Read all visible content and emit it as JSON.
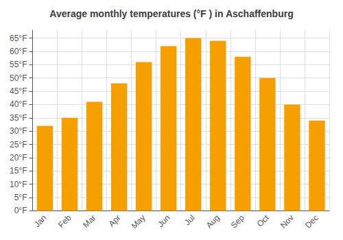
{
  "chart_data": {
    "type": "bar",
    "title": "Average monthly temperatures (°F ) in Aschaffenburg",
    "categories": [
      "Jan",
      "Feb",
      "Mar",
      "Apr",
      "May",
      "Jun",
      "Jul",
      "Aug",
      "Sep",
      "Oct",
      "Nov",
      "Dec"
    ],
    "values": [
      32,
      35,
      41,
      48,
      56,
      62,
      65,
      64,
      58,
      50,
      40,
      34
    ],
    "color": "#F5A000",
    "ylim": [
      0,
      68
    ],
    "yticks": [
      {
        "value": 0,
        "label": "0°F"
      },
      {
        "value": 5,
        "label": "5°F"
      },
      {
        "value": 10,
        "label": "10°F"
      },
      {
        "value": 15,
        "label": "15°F"
      },
      {
        "value": 20,
        "label": "20°F"
      },
      {
        "value": 25,
        "label": "25°F"
      },
      {
        "value": 30,
        "label": "30°F"
      },
      {
        "value": 35,
        "label": "35°F"
      },
      {
        "value": 40,
        "label": "40°F"
      },
      {
        "value": 45,
        "label": "45°F"
      },
      {
        "value": 50,
        "label": "50°F"
      },
      {
        "value": 55,
        "label": "55°F"
      },
      {
        "value": 60,
        "label": "60°F"
      },
      {
        "value": 65,
        "label": "65°F"
      }
    ],
    "grid": true
  }
}
